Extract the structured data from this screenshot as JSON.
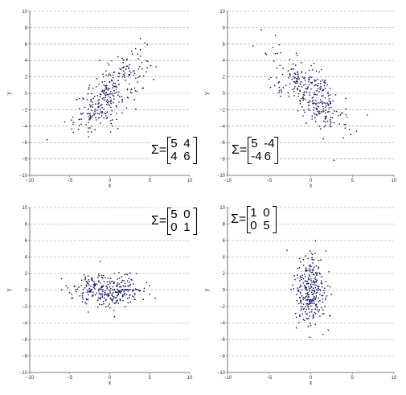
{
  "chart_data": [
    {
      "type": "scatter",
      "xlabel": "x",
      "ylabel": "y",
      "xlim": [
        -10,
        10
      ],
      "ylim": [
        -10,
        10
      ],
      "xticks": [
        -10,
        -5,
        0,
        5,
        10
      ],
      "yticks": [
        -10,
        -8,
        -6,
        -4,
        -2,
        0,
        2,
        4,
        6,
        8,
        10
      ],
      "grid": "horizontal-dashed",
      "point_color": "#1a1a66",
      "n_points": 300,
      "mean": [
        0,
        0
      ],
      "covariance": {
        "label": "Σ=",
        "matrix": [
          [
            "5",
            "4"
          ],
          [
            "4",
            "6"
          ]
        ],
        "position": "bottom-right"
      }
    },
    {
      "type": "scatter",
      "xlabel": "x",
      "ylabel": "y",
      "xlim": [
        -10,
        10
      ],
      "ylim": [
        -10,
        10
      ],
      "xticks": [
        -10,
        -5,
        0,
        5,
        10
      ],
      "yticks": [
        -10,
        -8,
        -6,
        -4,
        -2,
        0,
        2,
        4,
        6,
        8,
        10
      ],
      "grid": "horizontal-dashed",
      "point_color": "#1a1a66",
      "n_points": 300,
      "mean": [
        0,
        0
      ],
      "covariance": {
        "label": "Σ=",
        "matrix": [
          [
            "5",
            "-4"
          ],
          [
            "-4",
            "6"
          ]
        ],
        "position": "bottom-left"
      }
    },
    {
      "type": "scatter",
      "xlabel": "x",
      "ylabel": "y",
      "xlim": [
        -10,
        10
      ],
      "ylim": [
        -10,
        10
      ],
      "xticks": [
        -10,
        -5,
        0,
        5,
        10
      ],
      "yticks": [
        -10,
        -8,
        -6,
        -4,
        -2,
        0,
        2,
        4,
        6,
        8,
        10
      ],
      "grid": "horizontal-dashed",
      "point_color": "#1a1a66",
      "n_points": 300,
      "mean": [
        0,
        0
      ],
      "covariance": {
        "label": "Σ=",
        "matrix": [
          [
            "5",
            "0"
          ],
          [
            "0",
            "1"
          ]
        ],
        "position": "top-right"
      }
    },
    {
      "type": "scatter",
      "xlabel": "x",
      "ylabel": "y",
      "xlim": [
        -10,
        10
      ],
      "ylim": [
        -10,
        10
      ],
      "xticks": [
        -10,
        -5,
        0,
        5,
        10
      ],
      "yticks": [
        -10,
        -8,
        -6,
        -4,
        -2,
        0,
        2,
        4,
        6,
        8,
        10
      ],
      "grid": "horizontal-dashed",
      "point_color": "#1a1a66",
      "n_points": 300,
      "mean": [
        0,
        0
      ],
      "covariance": {
        "label": "Σ=",
        "matrix": [
          [
            "1",
            "0"
          ],
          [
            "0",
            "5"
          ]
        ],
        "position": "top-left"
      }
    }
  ]
}
